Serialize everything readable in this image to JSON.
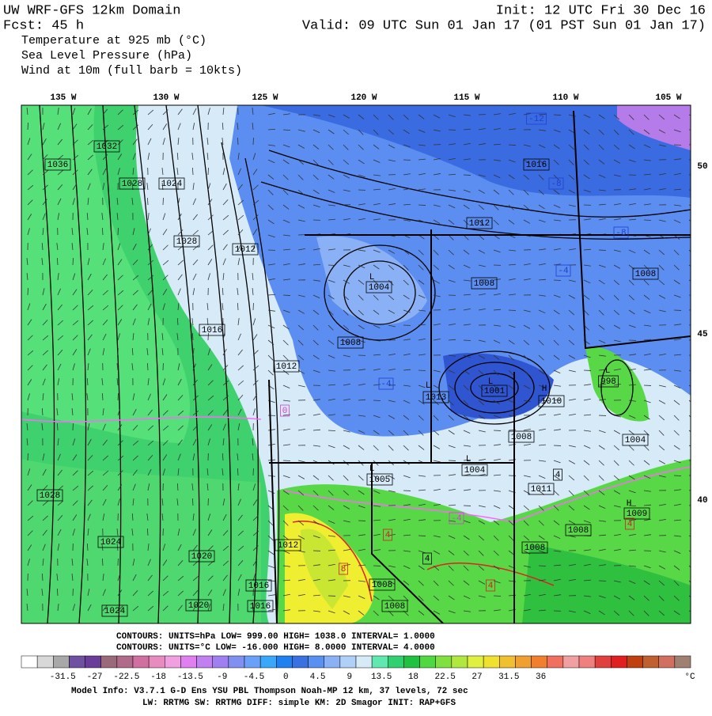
{
  "header": {
    "title_left": "UW WRF-GFS 12km Domain",
    "init": "Init: 12 UTC Fri 30 Dec 16",
    "forecast": "Fcst:   45 h",
    "valid": "Valid: 09 UTC Sun 01 Jan 17 (01 PST Sun 01 Jan 17)",
    "fields": [
      "Temperature at 925 mb (°C)",
      "Sea Level Pressure (hPa)",
      "Wind at 10m (full barb = 10kts)"
    ]
  },
  "map": {
    "longitudes": [
      "135 W",
      "130 W",
      "125 W",
      "120 W",
      "115 W",
      "110 W",
      "105 W"
    ],
    "latitudes": [
      "50",
      "45",
      "40"
    ],
    "pressure_labels": [
      "1032",
      "1036",
      "1028",
      "1024",
      "1028",
      "1012",
      "1016",
      "1012",
      "1008",
      "1004",
      "1008",
      "1012",
      "1016",
      "1008",
      "1013",
      "1001",
      "1010",
      "998",
      "1008",
      "1004",
      "1004",
      "1005",
      "1011",
      "1008",
      "1008",
      "1009",
      "1028",
      "1024",
      "1020",
      "1012",
      "1016",
      "1016",
      "1020",
      "1024",
      "1008",
      "1008"
    ],
    "temperature_labels": [
      "-12",
      "-8",
      "-8",
      "-4",
      "-4",
      "0",
      "4",
      "8",
      "4",
      "4",
      "4",
      "-4",
      "4"
    ],
    "centers": [
      "L",
      "L",
      "L",
      "H",
      "L",
      "L",
      "L",
      "H"
    ]
  },
  "legend": {
    "contours_slp": "CONTOURS:  UNITS=hPa  LOW=  999.00      HIGH=  1038.0      INTERVAL=    1.0000",
    "contours_temp": "CONTOURS:  UNITS=°C  LOW=  -16.000      HIGH=  8.0000      INTERVAL=    4.0000",
    "colorbar_labels": [
      "-31.5",
      "-27",
      "-22.5",
      "-18",
      "-13.5",
      "-9",
      "-4.5",
      "0",
      "4.5",
      "9",
      "13.5",
      "18",
      "22.5",
      "27",
      "31.5",
      "36"
    ],
    "unit": "°C"
  },
  "footer": {
    "model_info": "Model Info: V3.7.1    G-D Ens YSU PBL  Thompson     Noah-MP   12 km,   37 levels,   72 sec",
    "physics": "LW: RRTMG SW: RRTMG    DIFF: simple KM: 2D Smagor INIT: RAP+GFS"
  }
}
